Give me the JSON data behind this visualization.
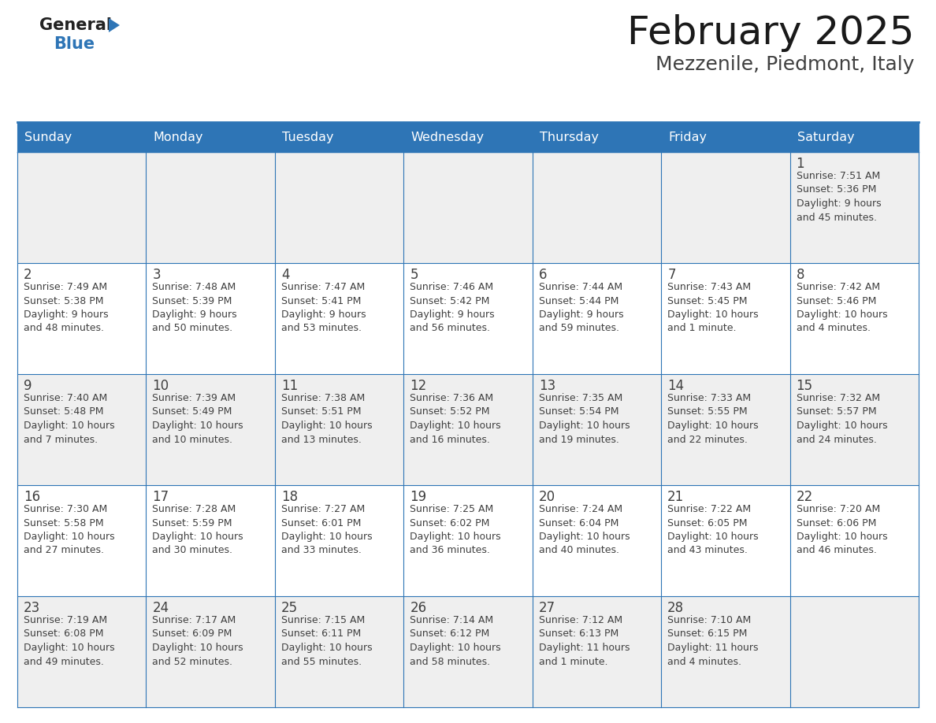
{
  "title": "February 2025",
  "subtitle": "Mezzenile, Piedmont, Italy",
  "days_of_week": [
    "Sunday",
    "Monday",
    "Tuesday",
    "Wednesday",
    "Thursday",
    "Friday",
    "Saturday"
  ],
  "header_bg": "#2E75B6",
  "header_text": "#FFFFFF",
  "row_bg": [
    "#EFEFEF",
    "#FFFFFF",
    "#EFEFEF",
    "#FFFFFF",
    "#EFEFEF"
  ],
  "border_color": "#2E75B6",
  "text_color": "#404040",
  "day_number_color": "#404040",
  "title_color": "#1a1a1a",
  "subtitle_color": "#404040",
  "calendar": [
    [
      null,
      null,
      null,
      null,
      null,
      null,
      {
        "day": "1",
        "sunrise": "7:51 AM",
        "sunset": "5:36 PM",
        "daylight": "9 hours\nand 45 minutes."
      }
    ],
    [
      {
        "day": "2",
        "sunrise": "7:49 AM",
        "sunset": "5:38 PM",
        "daylight": "9 hours\nand 48 minutes."
      },
      {
        "day": "3",
        "sunrise": "7:48 AM",
        "sunset": "5:39 PM",
        "daylight": "9 hours\nand 50 minutes."
      },
      {
        "day": "4",
        "sunrise": "7:47 AM",
        "sunset": "5:41 PM",
        "daylight": "9 hours\nand 53 minutes."
      },
      {
        "day": "5",
        "sunrise": "7:46 AM",
        "sunset": "5:42 PM",
        "daylight": "9 hours\nand 56 minutes."
      },
      {
        "day": "6",
        "sunrise": "7:44 AM",
        "sunset": "5:44 PM",
        "daylight": "9 hours\nand 59 minutes."
      },
      {
        "day": "7",
        "sunrise": "7:43 AM",
        "sunset": "5:45 PM",
        "daylight": "10 hours\nand 1 minute."
      },
      {
        "day": "8",
        "sunrise": "7:42 AM",
        "sunset": "5:46 PM",
        "daylight": "10 hours\nand 4 minutes."
      }
    ],
    [
      {
        "day": "9",
        "sunrise": "7:40 AM",
        "sunset": "5:48 PM",
        "daylight": "10 hours\nand 7 minutes."
      },
      {
        "day": "10",
        "sunrise": "7:39 AM",
        "sunset": "5:49 PM",
        "daylight": "10 hours\nand 10 minutes."
      },
      {
        "day": "11",
        "sunrise": "7:38 AM",
        "sunset": "5:51 PM",
        "daylight": "10 hours\nand 13 minutes."
      },
      {
        "day": "12",
        "sunrise": "7:36 AM",
        "sunset": "5:52 PM",
        "daylight": "10 hours\nand 16 minutes."
      },
      {
        "day": "13",
        "sunrise": "7:35 AM",
        "sunset": "5:54 PM",
        "daylight": "10 hours\nand 19 minutes."
      },
      {
        "day": "14",
        "sunrise": "7:33 AM",
        "sunset": "5:55 PM",
        "daylight": "10 hours\nand 22 minutes."
      },
      {
        "day": "15",
        "sunrise": "7:32 AM",
        "sunset": "5:57 PM",
        "daylight": "10 hours\nand 24 minutes."
      }
    ],
    [
      {
        "day": "16",
        "sunrise": "7:30 AM",
        "sunset": "5:58 PM",
        "daylight": "10 hours\nand 27 minutes."
      },
      {
        "day": "17",
        "sunrise": "7:28 AM",
        "sunset": "5:59 PM",
        "daylight": "10 hours\nand 30 minutes."
      },
      {
        "day": "18",
        "sunrise": "7:27 AM",
        "sunset": "6:01 PM",
        "daylight": "10 hours\nand 33 minutes."
      },
      {
        "day": "19",
        "sunrise": "7:25 AM",
        "sunset": "6:02 PM",
        "daylight": "10 hours\nand 36 minutes."
      },
      {
        "day": "20",
        "sunrise": "7:24 AM",
        "sunset": "6:04 PM",
        "daylight": "10 hours\nand 40 minutes."
      },
      {
        "day": "21",
        "sunrise": "7:22 AM",
        "sunset": "6:05 PM",
        "daylight": "10 hours\nand 43 minutes."
      },
      {
        "day": "22",
        "sunrise": "7:20 AM",
        "sunset": "6:06 PM",
        "daylight": "10 hours\nand 46 minutes."
      }
    ],
    [
      {
        "day": "23",
        "sunrise": "7:19 AM",
        "sunset": "6:08 PM",
        "daylight": "10 hours\nand 49 minutes."
      },
      {
        "day": "24",
        "sunrise": "7:17 AM",
        "sunset": "6:09 PM",
        "daylight": "10 hours\nand 52 minutes."
      },
      {
        "day": "25",
        "sunrise": "7:15 AM",
        "sunset": "6:11 PM",
        "daylight": "10 hours\nand 55 minutes."
      },
      {
        "day": "26",
        "sunrise": "7:14 AM",
        "sunset": "6:12 PM",
        "daylight": "10 hours\nand 58 minutes."
      },
      {
        "day": "27",
        "sunrise": "7:12 AM",
        "sunset": "6:13 PM",
        "daylight": "11 hours\nand 1 minute."
      },
      {
        "day": "28",
        "sunrise": "7:10 AM",
        "sunset": "6:15 PM",
        "daylight": "11 hours\nand 4 minutes."
      },
      null
    ]
  ]
}
